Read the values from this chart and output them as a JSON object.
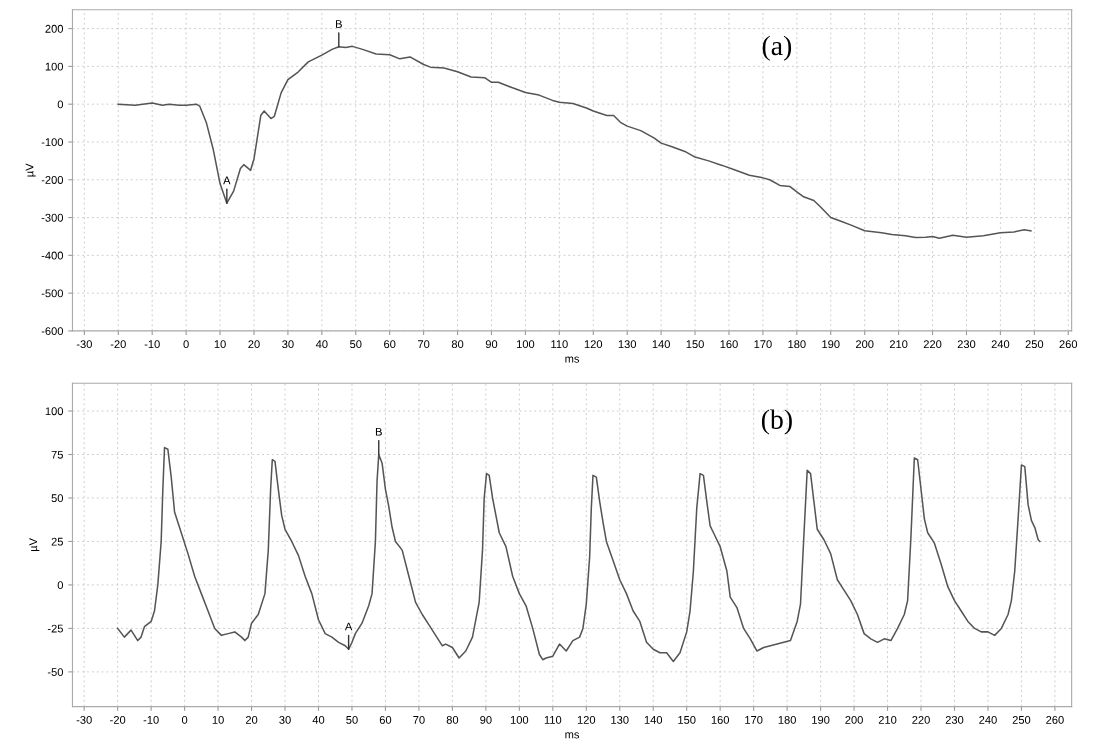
{
  "chart_data": [
    {
      "type": "line",
      "title": "(a)",
      "xlabel": "ms",
      "ylabel": "µV",
      "x": [
        -20,
        -15,
        -10,
        -7,
        -5,
        -2,
        0,
        3,
        4,
        6,
        8,
        10,
        12,
        14,
        16,
        17,
        19,
        20,
        22,
        23,
        25,
        26,
        28,
        30,
        33,
        36,
        40,
        43,
        45,
        47,
        49,
        52,
        56,
        60,
        63,
        66,
        70,
        72,
        76,
        80,
        84,
        88,
        90,
        92,
        96,
        100,
        104,
        108,
        110,
        114,
        118,
        120,
        124,
        126,
        128,
        130,
        134,
        138,
        140,
        143,
        147,
        150,
        154,
        158,
        162,
        166,
        170,
        172,
        175,
        178,
        180,
        182,
        185,
        187,
        190,
        193,
        196,
        200,
        205,
        208,
        212,
        215,
        218,
        220,
        222,
        226,
        230,
        235,
        240,
        244,
        247,
        249
      ],
      "series": [
        {
          "color": "#555555",
          "values": [
            0,
            -3,
            3,
            -3,
            0,
            -3,
            -3,
            0,
            -5,
            -50,
            -120,
            -210,
            -262,
            -230,
            -170,
            -160,
            -175,
            -145,
            -30,
            -18,
            -38,
            -32,
            30,
            65,
            85,
            112,
            130,
            145,
            152,
            150,
            153,
            145,
            133,
            131,
            120,
            125,
            105,
            98,
            96,
            86,
            72,
            70,
            58,
            58,
            44,
            31,
            24,
            10,
            5,
            2,
            -10,
            -18,
            -30,
            -30,
            -48,
            -58,
            -70,
            -90,
            -103,
            -112,
            -125,
            -140,
            -150,
            -162,
            -175,
            -188,
            -195,
            -200,
            -215,
            -218,
            -232,
            -245,
            -255,
            -272,
            -300,
            -310,
            -320,
            -335,
            -340,
            -345,
            -348,
            -353,
            -352,
            -350,
            -355,
            -347,
            -352,
            -348,
            -340,
            -338,
            -332,
            -335
          ]
        }
      ],
      "xlim": [
        -33.5,
        261
      ],
      "xticks": [
        -30,
        -20,
        -10,
        0,
        10,
        20,
        30,
        40,
        50,
        60,
        70,
        80,
        90,
        100,
        110,
        120,
        130,
        140,
        150,
        160,
        170,
        180,
        190,
        200,
        210,
        220,
        230,
        240,
        250,
        260
      ],
      "ylim": [
        -600,
        250
      ],
      "yticks": [
        -600,
        -500,
        -400,
        -300,
        -200,
        -100,
        0,
        100,
        200
      ],
      "grid": true,
      "line_style": "solid",
      "annotations": [
        {
          "text": "A",
          "x": 12,
          "y": -262
        },
        {
          "text": "B",
          "x": 45,
          "y": 152
        }
      ]
    },
    {
      "type": "line",
      "title": "(b)",
      "xlabel": "ms",
      "ylabel": "µV",
      "x": [
        -20,
        -18,
        -16,
        -14,
        -13,
        -12,
        -10,
        -9,
        -8,
        -7,
        -6.5,
        -6,
        -5,
        -4,
        -3,
        -1,
        1,
        3,
        5,
        7,
        9,
        11,
        13,
        15,
        17,
        18,
        19,
        20,
        22,
        24,
        25,
        25.7,
        26.2,
        27,
        28,
        29,
        30,
        32,
        34,
        36,
        38,
        40,
        42,
        44,
        46,
        48,
        49,
        50,
        51,
        53,
        55,
        56,
        57,
        57.5,
        58,
        59,
        60,
        61,
        62,
        63,
        65,
        67,
        69,
        71,
        73,
        75,
        77,
        78,
        80,
        82,
        84,
        86,
        87,
        88,
        89,
        89.5,
        90.2,
        91,
        92,
        93,
        94,
        96,
        98,
        100,
        102,
        104,
        106,
        107,
        108,
        110,
        112,
        114,
        116,
        118,
        119,
        120,
        121,
        121.5,
        122,
        123,
        124,
        125,
        126,
        128,
        130,
        132,
        134,
        136,
        138,
        140,
        142,
        144,
        146,
        148,
        150,
        151,
        152,
        153,
        154,
        155,
        156,
        157,
        158,
        160,
        162,
        163,
        165,
        167,
        169,
        171,
        173,
        175,
        177,
        179,
        181,
        183,
        184,
        185,
        186,
        187,
        188,
        189,
        191,
        193,
        195,
        197,
        199,
        201,
        203,
        205,
        207,
        209,
        211,
        213,
        215,
        216,
        217,
        218,
        219,
        220,
        221,
        222,
        224,
        226,
        228,
        230,
        232,
        234,
        236,
        238,
        240,
        242,
        244,
        246,
        247,
        248,
        249,
        250,
        251,
        252,
        253,
        254,
        255,
        255.5
      ],
      "series": [
        {
          "color": "#555555",
          "values": [
            -25,
            -30,
            -26,
            -32,
            -30,
            -24,
            -21,
            -15,
            0,
            25,
            55,
            79,
            78,
            62,
            42,
            30,
            18,
            5,
            -5,
            -15,
            -25,
            -29,
            -28,
            -27,
            -30,
            -32,
            -30,
            -22,
            -17,
            -5,
            20,
            55,
            72,
            71,
            55,
            40,
            32,
            25,
            17,
            5,
            -5,
            -20,
            -28,
            -30,
            -33,
            -35,
            -37,
            -33,
            -28,
            -22,
            -12,
            -5,
            25,
            60,
            75,
            70,
            55,
            45,
            33,
            25,
            20,
            5,
            -10,
            -17,
            -23,
            -29,
            -35,
            -34,
            -36,
            -42,
            -38,
            -30,
            -20,
            -10,
            20,
            50,
            64,
            63,
            50,
            40,
            30,
            22,
            5,
            -5,
            -12,
            -25,
            -40,
            -43,
            -42,
            -41,
            -34,
            -38,
            -32,
            -30,
            -25,
            -11,
            16,
            44,
            63,
            62,
            48,
            36,
            25,
            14,
            3,
            -5,
            -15,
            -21,
            -33,
            -37,
            -39,
            -39,
            -44,
            -39,
            -27,
            -15,
            8,
            44,
            64,
            63,
            48,
            34,
            30,
            22,
            8,
            -7,
            -13,
            -25,
            -31,
            -38,
            -36,
            -35,
            -34,
            -33,
            -32,
            -21,
            -11,
            28,
            66,
            64,
            48,
            32,
            26,
            18,
            3,
            -3,
            -9,
            -17,
            -28,
            -31,
            -33,
            -31,
            -32,
            -25,
            -17,
            -9,
            28,
            73,
            72,
            55,
            38,
            30,
            24,
            12,
            -1,
            -9,
            -15,
            -21,
            -25,
            -27,
            -27,
            -29,
            -25,
            -17,
            -9,
            8,
            38,
            69,
            68,
            46,
            37,
            33,
            26,
            25
          ]
        }
      ],
      "xlim": [
        -33.5,
        265
      ],
      "xticks": [
        -30,
        -20,
        -10,
        0,
        10,
        20,
        30,
        40,
        50,
        60,
        70,
        80,
        90,
        100,
        110,
        120,
        130,
        140,
        150,
        160,
        170,
        180,
        190,
        200,
        210,
        220,
        230,
        240,
        250,
        260
      ],
      "ylim": [
        -70,
        116
      ],
      "yticks": [
        -50,
        -25,
        0,
        25,
        50,
        75,
        100
      ],
      "grid": true,
      "line_style": "solid",
      "annotations": [
        {
          "text": "A",
          "x": 49,
          "y": -37
        },
        {
          "text": "B",
          "x": 58,
          "y": 75
        }
      ]
    }
  ]
}
